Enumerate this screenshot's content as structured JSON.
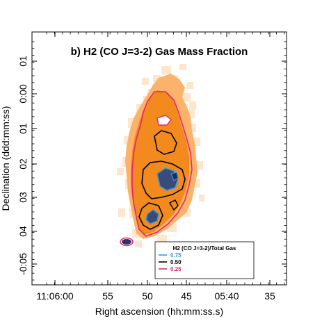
{
  "chart_data": {
    "type": "contour_map",
    "panel_label": "b)",
    "title": "b) H2 (CO J=3-2) Gas Mass Fraction",
    "xlabel": "Right ascension (hh:mm:ss.s)",
    "ylabel": "Declination (ddd:mm:ss)",
    "x_ticks": [
      "11:06:00",
      "55",
      "50",
      "45",
      "05:40",
      "35"
    ],
    "y_ticks": [
      "01",
      "0:00",
      "01",
      "02",
      "03",
      "04",
      "-0:05"
    ],
    "legend": {
      "title": "H2 (CO J=3-2)/Total Gas",
      "placement": "bottom-right",
      "entries": [
        {
          "value": "0.75",
          "color": "#3399dd"
        },
        {
          "value": "0.50",
          "color": "#000000"
        },
        {
          "value": "0.25",
          "color": "#e8256a"
        }
      ]
    },
    "colormap": {
      "low": "#fde6cc",
      "mid": "#fbb36b",
      "high": "#f28a1e",
      "contour_fill_high": "#f07f10"
    },
    "grid": false
  }
}
